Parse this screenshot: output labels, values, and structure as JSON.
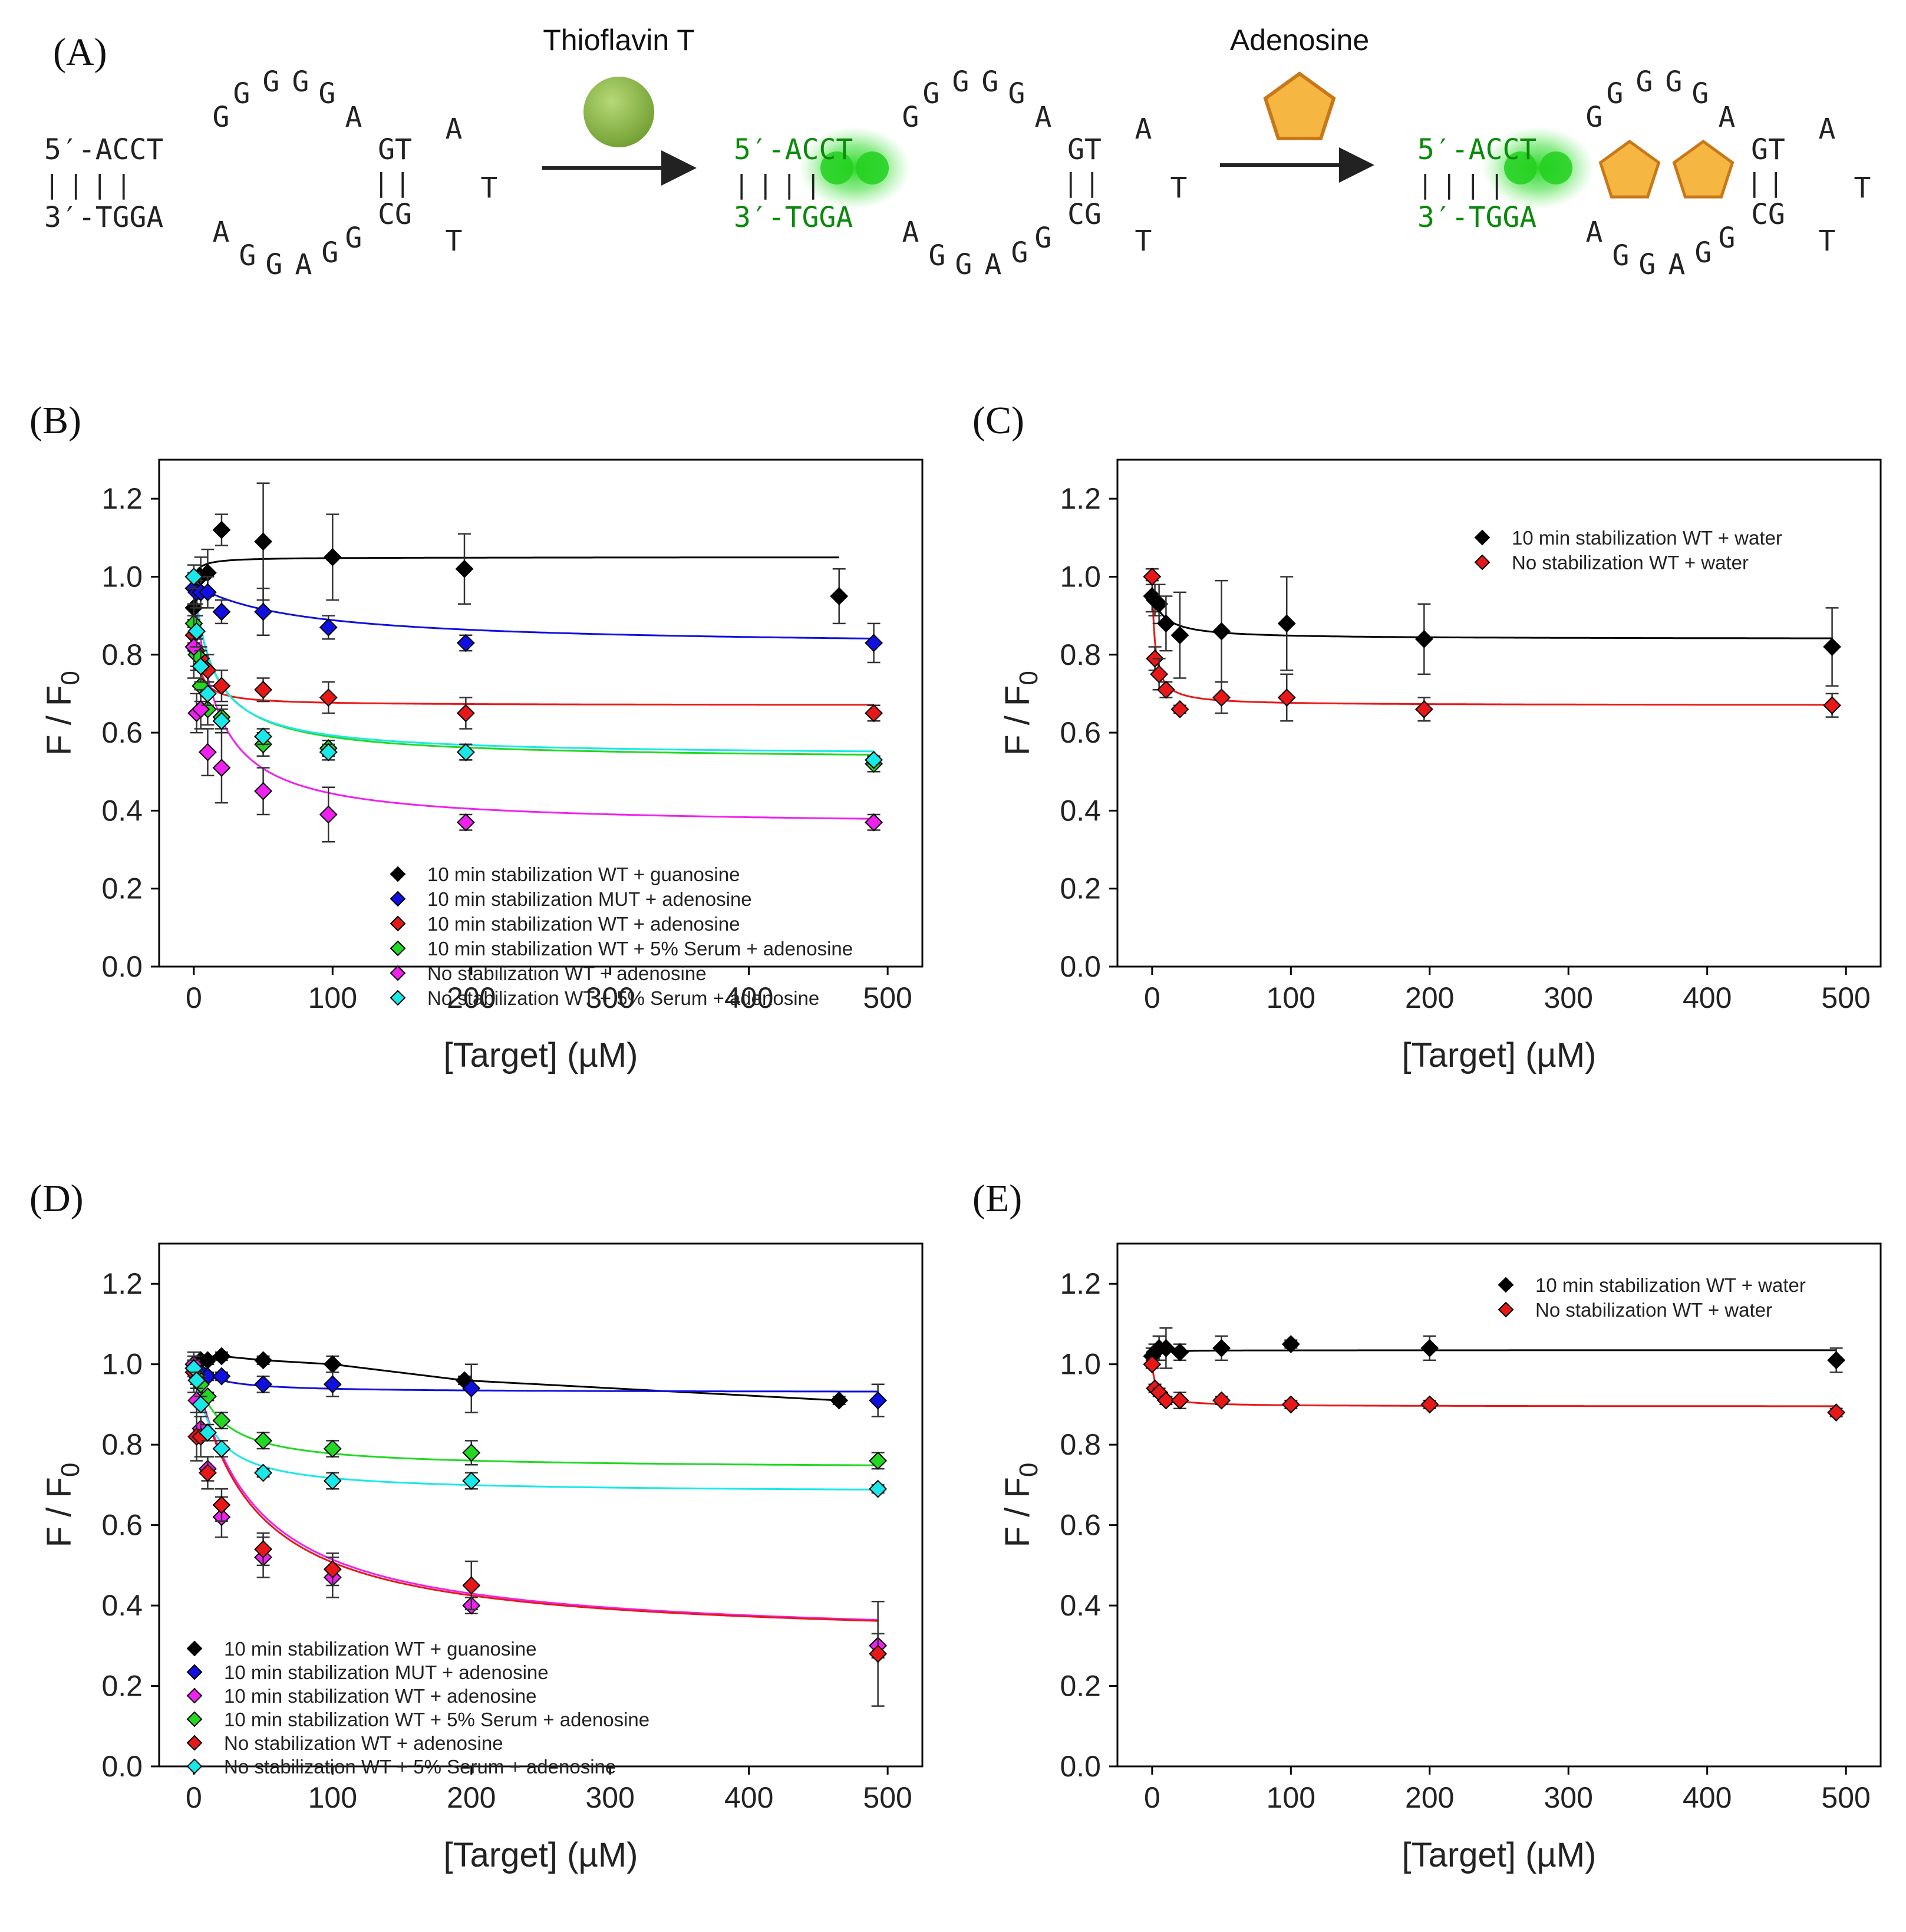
{
  "scheme": {
    "panel_label": "(A)",
    "step1_label": "Thioflavin T",
    "step2_label": "Adenosine",
    "five_prime": "5′-ACCT",
    "three_prime": "3′-TGGA",
    "pairs": "||||",
    "top_loop": [
      "G",
      "G",
      "G",
      "G",
      "G",
      "A"
    ],
    "bottom_loop": [
      "A",
      "G",
      "G",
      "A",
      "G",
      "G"
    ],
    "stem_top": "GT",
    "stem_bottom": "CG",
    "stem_pairs": "||",
    "hairpin": [
      "A",
      "T",
      "T"
    ],
    "colors": {
      "tht": "#8fba4a",
      "tht_glow": "#3ee03a",
      "adenosine": "#f6b642",
      "adenosine_edge": "#c87818"
    }
  },
  "chart_data": [
    {
      "panel": "(B)",
      "type": "scatter",
      "xlabel": "[Target] (µM)",
      "ylabel": "F / F",
      "ylabel_sub": "0",
      "xlim": [
        -25,
        525
      ],
      "ylim": [
        0,
        1.3
      ],
      "xticks": [
        "0",
        "100",
        "200",
        "300",
        "400",
        "500"
      ],
      "yticks": [
        "0.0",
        "0.2",
        "0.4",
        "0.6",
        "0.8",
        "1.0",
        "1.2"
      ],
      "legend_position": "lower-center",
      "series": [
        {
          "name": "10 min stabilization WT + guanosine",
          "color": "#000000",
          "x": [
            0,
            2,
            5,
            10,
            20,
            50,
            100,
            195,
            465
          ],
          "y": [
            0.92,
            0.96,
            1.0,
            1.01,
            1.12,
            1.09,
            1.05,
            1.02,
            0.95
          ],
          "err": [
            0.05,
            0.04,
            0.05,
            0.06,
            0.04,
            0.15,
            0.11,
            0.09,
            0.07
          ],
          "fit": {
            "y0": 1.0,
            "a": -0.05,
            "k": 5,
            "x_end": 465
          }
        },
        {
          "name": "10 min stabilization MUT + adenosine",
          "color": "#1010e0",
          "x": [
            0,
            2,
            5,
            10,
            20,
            50,
            97,
            196,
            490
          ],
          "y": [
            0.97,
            0.96,
            0.96,
            0.96,
            0.91,
            0.91,
            0.87,
            0.83,
            0.83
          ],
          "err": [
            0.04,
            0.03,
            0.04,
            0.04,
            0.03,
            0.06,
            0.03,
            0.02,
            0.05
          ],
          "fit": {
            "y0": 0.98,
            "a": 0.16,
            "k": 75,
            "x_end": 490
          }
        },
        {
          "name": "10 min stabilization WT + adenosine",
          "color": "#e81818",
          "x": [
            0,
            2,
            5,
            10,
            20,
            50,
            97,
            196,
            490
          ],
          "y": [
            0.85,
            0.81,
            0.79,
            0.76,
            0.72,
            0.71,
            0.69,
            0.65,
            0.65
          ],
          "err": [
            0.04,
            0.04,
            0.03,
            0.04,
            0.04,
            0.03,
            0.04,
            0.04,
            0.02
          ],
          "fit": {
            "y0": 0.9,
            "a": 0.23,
            "k": 3,
            "x_end": 490
          }
        },
        {
          "name": "10 min stabilization WT + 5% Serum + adenosine",
          "color": "#22d822",
          "x": [
            0,
            2,
            5,
            10,
            20,
            50,
            97,
            196,
            490
          ],
          "y": [
            0.88,
            0.8,
            0.72,
            0.66,
            0.64,
            0.57,
            0.56,
            0.55,
            0.52
          ],
          "err": [
            0.05,
            0.04,
            0.04,
            0.04,
            0.03,
            0.03,
            0.02,
            0.02,
            0.02
          ],
          "fit": {
            "y0": 0.98,
            "a": 0.45,
            "k": 15,
            "x_end": 490
          }
        },
        {
          "name": "No stabilization WT + adenosine",
          "color": "#f020f0",
          "x": [
            0,
            2,
            5,
            10,
            20,
            50,
            97,
            196,
            490
          ],
          "y": [
            0.82,
            0.65,
            0.66,
            0.55,
            0.51,
            0.45,
            0.39,
            0.37,
            0.37
          ],
          "err": [
            0.08,
            0.05,
            0.05,
            0.06,
            0.09,
            0.06,
            0.07,
            0.02,
            0.02
          ],
          "fit": {
            "y0": 1.0,
            "a": 0.64,
            "k": 15,
            "x_end": 490
          }
        },
        {
          "name": "No stabilization WT + 5% Serum + adenosine",
          "color": "#18e8e8",
          "x": [
            0,
            2,
            5,
            10,
            20,
            50,
            97,
            196,
            490
          ],
          "y": [
            1.0,
            0.86,
            0.77,
            0.7,
            0.63,
            0.59,
            0.55,
            0.55,
            0.53
          ],
          "err": [
            0.03,
            0.04,
            0.04,
            0.03,
            0.03,
            0.02,
            0.02,
            0.02,
            0.01
          ],
          "fit": {
            "y0": 1.0,
            "a": 0.46,
            "k": 13,
            "x_end": 490
          }
        }
      ]
    },
    {
      "panel": "(C)",
      "type": "scatter",
      "xlabel": "[Target] (µM)",
      "ylabel": "F / F",
      "ylabel_sub": "0",
      "xlim": [
        -25,
        525
      ],
      "ylim": [
        0,
        1.3
      ],
      "xticks": [
        "0",
        "100",
        "200",
        "300",
        "400",
        "500"
      ],
      "yticks": [
        "0.0",
        "0.2",
        "0.4",
        "0.6",
        "0.8",
        "1.0",
        "1.2"
      ],
      "legend_position": "top-center",
      "series": [
        {
          "name": "10 min stabilization WT + water",
          "color": "#000000",
          "x": [
            0,
            2,
            5,
            10,
            20,
            50,
            97,
            196,
            490
          ],
          "y": [
            0.95,
            0.94,
            0.93,
            0.88,
            0.85,
            0.86,
            0.88,
            0.84,
            0.82
          ],
          "err": [
            0.04,
            0.04,
            0.05,
            0.07,
            0.11,
            0.13,
            0.12,
            0.09,
            0.1
          ],
          "fit": {
            "y0": 0.96,
            "a": 0.12,
            "k": 8,
            "x_end": 490
          }
        },
        {
          "name": "No stabilization WT + water",
          "color": "#e81818",
          "x": [
            0,
            2,
            5,
            10,
            20,
            50,
            97,
            196,
            490
          ],
          "y": [
            1.0,
            0.79,
            0.75,
            0.71,
            0.66,
            0.69,
            0.69,
            0.66,
            0.67
          ],
          "err": [
            0.02,
            0.03,
            0.04,
            0.02,
            0.01,
            0.04,
            0.06,
            0.03,
            0.03
          ],
          "fit": {
            "y0": 1.0,
            "a": 0.33,
            "k": 2,
            "x_end": 490
          }
        }
      ]
    },
    {
      "panel": "(D)",
      "type": "scatter",
      "xlabel": "[Target] (µM)",
      "ylabel": "F / F",
      "ylabel_sub": "0",
      "xlim": [
        -25,
        525
      ],
      "ylim": [
        0,
        1.3
      ],
      "xticks": [
        "0",
        "100",
        "200",
        "300",
        "400",
        "500"
      ],
      "yticks": [
        "0.0",
        "0.2",
        "0.4",
        "0.6",
        "0.8",
        "1.0",
        "1.2"
      ],
      "legend_position": "lower-left",
      "series": [
        {
          "name": "10 min stabilization WT + guanosine",
          "color": "#000000",
          "x": [
            0,
            2,
            5,
            10,
            20,
            50,
            100,
            195,
            465
          ],
          "y": [
            1.0,
            1.0,
            1.01,
            1.01,
            1.02,
            1.01,
            1.0,
            0.96,
            0.91
          ],
          "err": [
            0.01,
            0.01,
            0.01,
            0.01,
            0.01,
            0.01,
            0.02,
            0.01,
            0.01
          ],
          "fit": {
            "line": true,
            "x_end": 465
          }
        },
        {
          "name": "10 min stabilization MUT + adenosine",
          "color": "#1010e0",
          "x": [
            0,
            2,
            5,
            10,
            20,
            50,
            100,
            200,
            493
          ],
          "y": [
            1.0,
            0.99,
            0.98,
            0.97,
            0.97,
            0.95,
            0.95,
            0.94,
            0.91
          ],
          "err": [
            0.01,
            0.01,
            0.01,
            0.01,
            0.01,
            0.02,
            0.03,
            0.06,
            0.04
          ],
          "fit": {
            "y0": 1.0,
            "a": 0.07,
            "k": 15,
            "x_end": 493
          }
        },
        {
          "name": "10 min stabilization WT + adenosine",
          "color": "#f020f0",
          "x": [
            0,
            2,
            5,
            10,
            20,
            50,
            100,
            200,
            493
          ],
          "y": [
            1.0,
            0.91,
            0.84,
            0.74,
            0.62,
            0.52,
            0.47,
            0.4,
            0.3
          ],
          "err": [
            0.02,
            0.03,
            0.03,
            0.03,
            0.05,
            0.05,
            0.05,
            0.02,
            0.03
          ],
          "fit": {
            "y0": 1.0,
            "a": 0.69,
            "k": 42,
            "x_end": 493
          }
        },
        {
          "name": "10 min stabilization WT + 5% Serum + adenosine",
          "color": "#22d822",
          "x": [
            0,
            2,
            5,
            10,
            20,
            50,
            100,
            200,
            493
          ],
          "y": [
            0.99,
            0.97,
            0.95,
            0.92,
            0.86,
            0.81,
            0.79,
            0.78,
            0.76
          ],
          "err": [
            0.02,
            0.02,
            0.02,
            0.01,
            0.02,
            0.02,
            0.02,
            0.03,
            0.02
          ],
          "fit": {
            "y0": 1.0,
            "a": 0.26,
            "k": 17,
            "x_end": 493
          }
        },
        {
          "name": "No stabilization WT + adenosine",
          "color": "#e81818",
          "x": [
            0,
            2,
            5,
            10,
            20,
            50,
            100,
            200,
            493
          ],
          "y": [
            0.98,
            0.82,
            0.82,
            0.73,
            0.65,
            0.54,
            0.49,
            0.45,
            0.28
          ],
          "err": [
            0.05,
            0.06,
            0.05,
            0.04,
            0.04,
            0.04,
            0.04,
            0.06,
            0.13
          ],
          "fit": {
            "y0": 1.0,
            "a": 0.69,
            "k": 40,
            "x_end": 493
          }
        },
        {
          "name": "No stabilization WT + 5% Serum + adenosine",
          "color": "#18e8e8",
          "x": [
            0,
            2,
            5,
            10,
            20,
            50,
            100,
            200,
            493
          ],
          "y": [
            0.99,
            0.96,
            0.9,
            0.83,
            0.79,
            0.73,
            0.71,
            0.71,
            0.69
          ],
          "err": [
            0.02,
            0.02,
            0.02,
            0.02,
            0.02,
            0.01,
            0.02,
            0.02,
            0.01
          ],
          "fit": {
            "y0": 1.0,
            "a": 0.32,
            "k": 13,
            "x_end": 493
          }
        }
      ]
    },
    {
      "panel": "(E)",
      "type": "scatter",
      "xlabel": "[Target] (µM)",
      "ylabel": "F / F",
      "ylabel_sub": "0",
      "xlim": [
        -25,
        525
      ],
      "ylim": [
        0,
        1.3
      ],
      "xticks": [
        "0",
        "100",
        "200",
        "300",
        "400",
        "500"
      ],
      "yticks": [
        "0.0",
        "0.2",
        "0.4",
        "0.6",
        "0.8",
        "1.0",
        "1.2"
      ],
      "legend_position": "top-center",
      "series": [
        {
          "name": "10 min stabilization WT + water",
          "color": "#000000",
          "x": [
            0,
            2,
            5,
            10,
            20,
            50,
            100,
            200,
            493
          ],
          "y": [
            1.02,
            1.03,
            1.04,
            1.04,
            1.03,
            1.04,
            1.05,
            1.04,
            1.01
          ],
          "err": [
            0.02,
            0.02,
            0.03,
            0.05,
            0.02,
            0.03,
            0.01,
            0.03,
            0.03
          ],
          "fit": {
            "y0": 1.0,
            "a": -0.035,
            "k": 1.5,
            "x_end": 493
          }
        },
        {
          "name": "No stabilization WT + water",
          "color": "#e81818",
          "x": [
            0,
            2,
            5,
            10,
            20,
            50,
            100,
            200,
            493
          ],
          "y": [
            1.0,
            0.94,
            0.93,
            0.91,
            0.91,
            0.91,
            0.9,
            0.9,
            0.88
          ],
          "err": [
            0.01,
            0.01,
            0.01,
            0.01,
            0.02,
            0.01,
            0.01,
            0.01,
            0.01
          ],
          "fit": {
            "y0": 1.0,
            "a": 0.105,
            "k": 3,
            "x_end": 493
          }
        }
      ]
    }
  ]
}
